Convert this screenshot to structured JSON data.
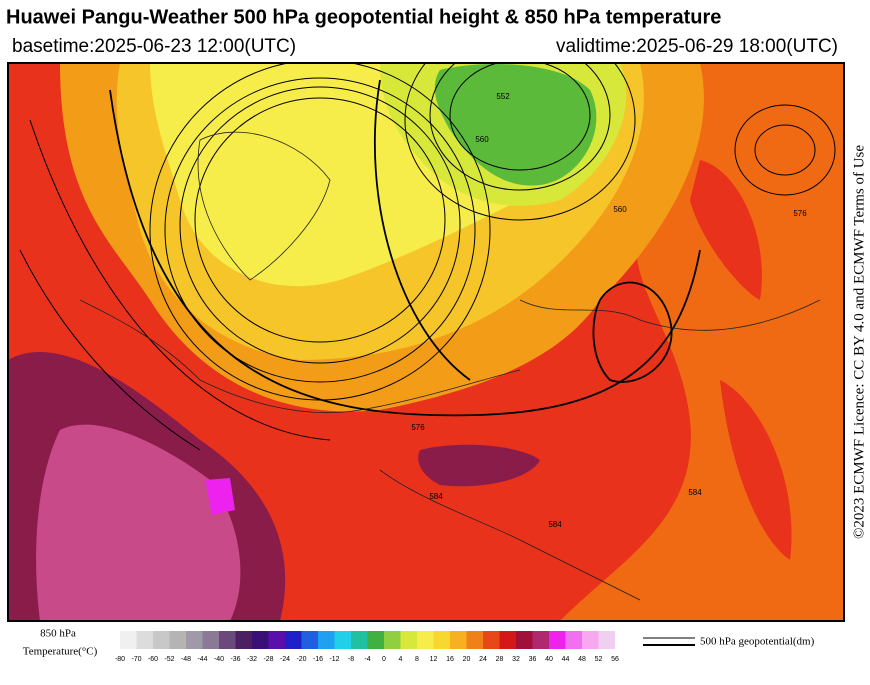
{
  "header": {
    "title": "Huawei Pangu-Weather 500 hPa geopotential height & 850 hPa temperature",
    "basetime": "basetime:2025-06-23 12:00(UTC)",
    "validtime": "validtime:2025-06-29 18:00(UTC)"
  },
  "licence": "©2023 ECMWF Licence: CC BY 4.0 and ECMWF Terms of Use",
  "map": {
    "contour_labels": [
      "552",
      "560",
      "576",
      "576",
      "584",
      "560",
      "584",
      "584"
    ]
  },
  "colorbar": {
    "title_line1": "850 hPa",
    "title_line2": "Temperature(°C)",
    "ticks": [
      -80,
      -70,
      -60,
      -52,
      -48,
      -44,
      -40,
      -36,
      -32,
      -28,
      -24,
      -20,
      -16,
      -12,
      -8,
      -4,
      0,
      4,
      8,
      12,
      16,
      20,
      24,
      28,
      32,
      36,
      40,
      44,
      48,
      52,
      56
    ]
  },
  "legend": {
    "label": "500 hPa geopotential(dm)"
  }
}
